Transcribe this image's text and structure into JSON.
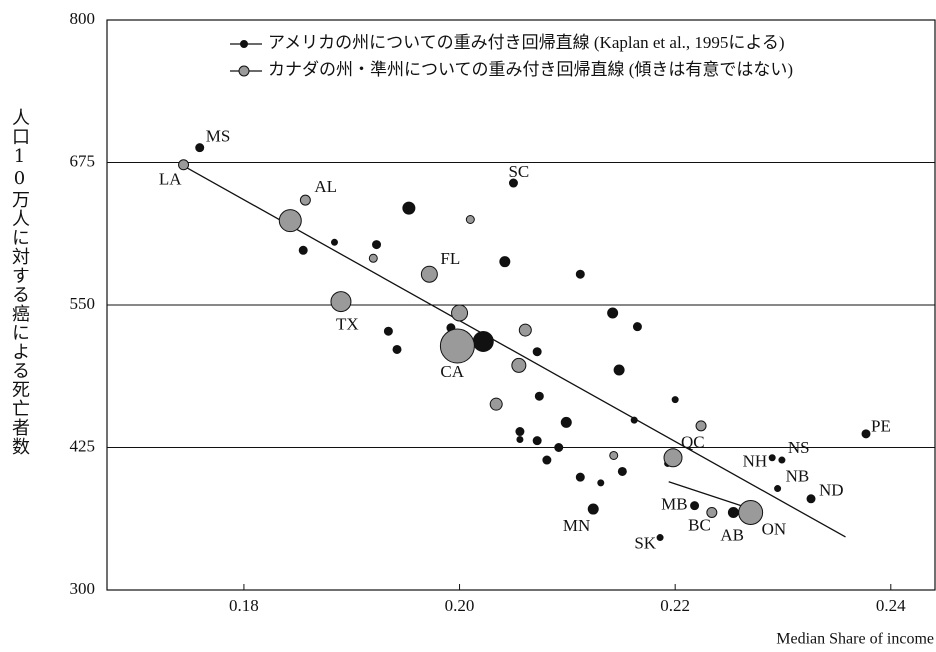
{
  "chart_data": {
    "type": "scatter",
    "y_label": "人口10万人に対する癌による死亡者数",
    "x_label": "Median Share of income",
    "xlim": [
      0.1673,
      0.2441
    ],
    "ylim": [
      300,
      800
    ],
    "xticks": [
      0.18,
      {
        "value": 0.2,
        "label": "0.20"
      },
      {
        "value": 0.22,
        "label": "0.22"
      },
      {
        "value": 0.24,
        "label": "0.24"
      }
    ],
    "yticks": [
      300,
      425,
      550,
      675,
      800
    ],
    "grid": true,
    "legend": "upper right",
    "series": [
      {
        "name": "アメリカの州についての重み付き回帰直線 (Kaplan et al., 1995による)",
        "color": "#111111",
        "x": [
          0.1759,
          0.205,
          0.1953,
          0.1923,
          0.1884,
          0.1855,
          0.2042,
          0.2112,
          0.1992,
          0.1934,
          0.1942,
          0.2022,
          0.2072,
          0.2142,
          0.2165,
          0.2148,
          0.2074,
          0.22,
          0.2162,
          0.2099,
          0.2056,
          0.2072,
          0.2056,
          0.2092,
          0.2081,
          0.2112,
          0.2131,
          0.2151,
          0.2124,
          0.2186,
          0.2218,
          0.229,
          0.2299,
          0.2295,
          0.2326,
          0.2377,
          0.2254,
          0.2193
        ],
        "values": [
          688,
          657,
          635,
          603,
          605,
          598,
          588,
          577,
          530,
          527,
          511,
          518,
          509,
          543,
          531,
          493,
          470,
          467,
          449,
          447,
          439,
          431,
          432,
          425,
          414,
          399,
          394,
          404,
          371,
          346,
          374,
          416,
          414,
          389,
          380,
          437,
          368,
          411
        ],
        "sizes": [
          4,
          4,
          6,
          4,
          3,
          4,
          5,
          4,
          4,
          4,
          4,
          10,
          4,
          5,
          4,
          5,
          4,
          3,
          3,
          5,
          4,
          4,
          3,
          4,
          4,
          4,
          3,
          4,
          5,
          3,
          4,
          3,
          3,
          3,
          4,
          4,
          5,
          3
        ],
        "labels": [
          "MS",
          "SC",
          null,
          null,
          null,
          null,
          null,
          null,
          null,
          null,
          null,
          null,
          null,
          null,
          null,
          null,
          null,
          null,
          null,
          null,
          null,
          null,
          null,
          null,
          null,
          null,
          null,
          null,
          "MN",
          "SK",
          "MB",
          "NH",
          "NS",
          "NB",
          "ND",
          "PE",
          "AB",
          null
        ],
        "line_x": [
          0.1744,
          0.2358
        ],
        "line_y": [
          672,
          346.5
        ]
      },
      {
        "name": "カナダの州・準州についての重み付き回帰直線 (傾きは有意ではない)",
        "color": "#9a9a9a",
        "x": [
          0.1744,
          0.1857,
          0.1843,
          0.189,
          0.1972,
          0.192,
          0.201,
          0.2,
          0.1998,
          0.2061,
          0.2055,
          0.2034,
          0.2224,
          0.2198,
          0.2143,
          0.2234,
          0.227
        ],
        "values": [
          673,
          642,
          624,
          553,
          577,
          591,
          625,
          543,
          514,
          528,
          497,
          463,
          444,
          416,
          418,
          368,
          368
        ],
        "sizes": [
          5,
          5,
          11,
          10,
          8,
          4,
          4,
          8,
          17,
          6,
          7,
          6,
          5,
          9,
          4,
          5,
          12
        ],
        "labels": [
          "LA",
          "AL",
          null,
          "TX",
          "FL",
          null,
          null,
          null,
          "CA",
          null,
          null,
          null,
          null,
          "QC",
          null,
          "BC",
          "ON"
        ],
        "line_x": [
          0.2194,
          0.2279
        ],
        "line_y": [
          395,
          368.4
        ]
      }
    ]
  }
}
